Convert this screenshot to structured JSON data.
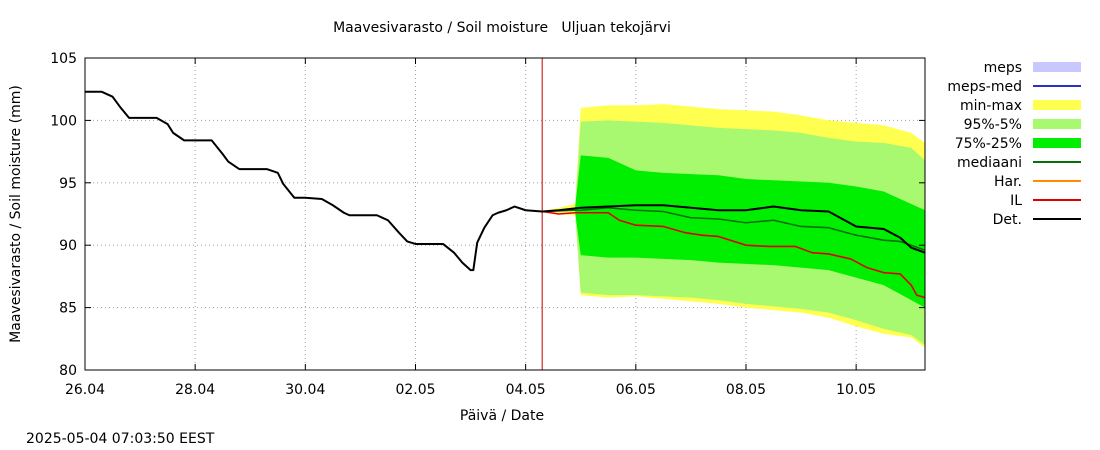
{
  "chart_data": {
    "type": "area",
    "title": "Maavesivarasto / Soil moisture   Uljuan tekojärvi",
    "xlabel": "Päivä / Date",
    "ylabel": "Maavesivarasto / Soil moisture (mm)",
    "timestamp": "2025-05-04 07:03:50 EEST",
    "xlim": [
      0,
      15.25
    ],
    "ylim": [
      80,
      105
    ],
    "x_ticks": [
      {
        "x": 0,
        "label": "26.04"
      },
      {
        "x": 2,
        "label": "28.04"
      },
      {
        "x": 4,
        "label": "30.04"
      },
      {
        "x": 6,
        "label": "02.05"
      },
      {
        "x": 8,
        "label": "04.05"
      },
      {
        "x": 10,
        "label": "06.05"
      },
      {
        "x": 12,
        "label": "08.05"
      },
      {
        "x": 14,
        "label": "10.05"
      }
    ],
    "y_ticks": [
      80,
      85,
      90,
      95,
      100,
      105
    ],
    "grid": true,
    "legend_position": "right",
    "forecast_start_x": 8.3,
    "series": [
      {
        "name": "meps",
        "kind": "band",
        "color": "#c8c8ff",
        "x": [],
        "lo": [],
        "hi": []
      },
      {
        "name": "meps-med",
        "kind": "line",
        "color": "#3030c0",
        "x": [],
        "y": []
      },
      {
        "name": "min-max",
        "kind": "band",
        "color": "#ffff50",
        "x": [
          8.3,
          8.6,
          8.9,
          9.0,
          9.5,
          10.0,
          10.5,
          11.0,
          11.5,
          12.0,
          12.5,
          13.0,
          13.5,
          14.0,
          14.5,
          15.0,
          15.25
        ],
        "lo": [
          92.7,
          92.5,
          92.4,
          86.0,
          85.8,
          85.9,
          85.7,
          85.5,
          85.3,
          85.0,
          84.8,
          84.6,
          84.2,
          83.5,
          82.9,
          82.6,
          81.8
        ],
        "hi": [
          92.7,
          93.0,
          93.3,
          101.0,
          101.2,
          101.2,
          101.3,
          101.1,
          100.9,
          100.8,
          100.7,
          100.4,
          100.0,
          99.8,
          99.6,
          99.0,
          98.2
        ]
      },
      {
        "name": "95%-5%",
        "kind": "band",
        "color": "#a8f870",
        "x": [
          8.9,
          9.0,
          9.5,
          10.0,
          10.5,
          11.0,
          11.5,
          12.0,
          12.5,
          13.0,
          13.5,
          14.0,
          14.5,
          15.0,
          15.25
        ],
        "lo": [
          92.5,
          86.2,
          86.0,
          86.0,
          85.9,
          85.8,
          85.6,
          85.3,
          85.1,
          84.9,
          84.6,
          84.0,
          83.3,
          82.8,
          82.0
        ],
        "hi": [
          93.2,
          99.9,
          100.0,
          99.9,
          99.8,
          99.6,
          99.4,
          99.3,
          99.2,
          99.0,
          98.6,
          98.3,
          98.2,
          97.8,
          96.8
        ]
      },
      {
        "name": "75%-25%",
        "kind": "band",
        "color": "#00ee00",
        "x": [
          8.9,
          9.0,
          9.5,
          10.0,
          10.5,
          11.0,
          11.5,
          12.0,
          12.5,
          13.0,
          13.5,
          14.0,
          14.5,
          15.0,
          15.25
        ],
        "lo": [
          92.6,
          89.2,
          89.0,
          89.0,
          88.9,
          88.8,
          88.6,
          88.5,
          88.4,
          88.2,
          88.0,
          87.4,
          86.8,
          85.6,
          85.0
        ],
        "hi": [
          93.1,
          97.2,
          97.0,
          96.0,
          95.8,
          95.7,
          95.6,
          95.3,
          95.2,
          95.1,
          95.0,
          94.7,
          94.3,
          93.3,
          92.8
        ]
      },
      {
        "name": "mediaani",
        "kind": "line",
        "color": "#0a6e0a",
        "x": [
          8.3,
          8.9,
          9.0,
          9.5,
          10.0,
          10.5,
          11.0,
          11.5,
          12.0,
          12.5,
          13.0,
          13.5,
          14.0,
          14.5,
          14.8,
          15.0,
          15.25
        ],
        "y": [
          92.7,
          92.8,
          92.8,
          93.0,
          92.8,
          92.7,
          92.2,
          92.1,
          91.8,
          92.0,
          91.5,
          91.4,
          90.8,
          90.4,
          90.3,
          90.0,
          89.6
        ]
      },
      {
        "name": "Har.",
        "kind": "line",
        "color": "#ff8c00",
        "x": [],
        "y": []
      },
      {
        "name": "IL",
        "kind": "line",
        "color": "#e00000",
        "x": [
          8.3,
          8.6,
          8.9,
          9.0,
          9.5,
          9.7,
          10.0,
          10.5,
          10.9,
          11.2,
          11.5,
          12.0,
          12.4,
          12.9,
          13.2,
          13.5,
          13.9,
          14.2,
          14.5,
          14.8,
          15.0,
          15.1,
          15.25
        ],
        "y": [
          92.7,
          92.5,
          92.6,
          92.6,
          92.6,
          92.0,
          91.6,
          91.5,
          91.0,
          90.8,
          90.7,
          90.0,
          89.9,
          89.9,
          89.4,
          89.3,
          88.9,
          88.2,
          87.8,
          87.7,
          86.8,
          86.0,
          85.8
        ]
      },
      {
        "name": "Det.",
        "kind": "line",
        "color": "#000000",
        "x": [
          0,
          0.3,
          0.5,
          0.65,
          0.8,
          1.3,
          1.5,
          1.6,
          1.8,
          2.0,
          2.3,
          2.5,
          2.6,
          2.8,
          3.0,
          3.3,
          3.5,
          3.6,
          3.8,
          4.0,
          4.3,
          4.5,
          4.7,
          4.8,
          5.0,
          5.3,
          5.5,
          5.7,
          5.85,
          6.0,
          6.3,
          6.5,
          6.7,
          6.85,
          7.0,
          7.05,
          7.12,
          7.25,
          7.4,
          7.5,
          7.65,
          7.8,
          8.0,
          8.3,
          8.6,
          9.0,
          9.5,
          10.0,
          10.5,
          11.0,
          11.5,
          12.0,
          12.5,
          13.0,
          13.5,
          14.0,
          14.5,
          14.8,
          15.0,
          15.25
        ],
        "y": [
          102.3,
          102.3,
          101.9,
          101.0,
          100.2,
          100.2,
          99.7,
          99.0,
          98.4,
          98.4,
          98.4,
          97.3,
          96.7,
          96.1,
          96.1,
          96.1,
          95.8,
          94.9,
          93.8,
          93.8,
          93.7,
          93.2,
          92.6,
          92.4,
          92.4,
          92.4,
          92.0,
          91.0,
          90.3,
          90.1,
          90.1,
          90.1,
          89.4,
          88.6,
          88.0,
          88.0,
          90.2,
          91.4,
          92.4,
          92.6,
          92.8,
          93.1,
          92.8,
          92.7,
          92.8,
          93.0,
          93.1,
          93.2,
          93.2,
          93.0,
          92.8,
          92.8,
          93.1,
          92.8,
          92.7,
          91.5,
          91.3,
          90.6,
          89.8,
          89.4
        ]
      }
    ]
  }
}
